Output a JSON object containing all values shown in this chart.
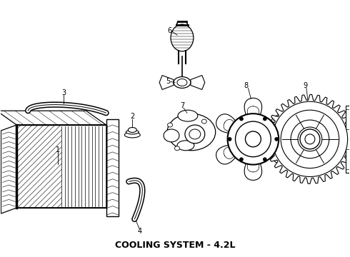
{
  "title": "COOLING SYSTEM - 4.2L",
  "title_fontsize": 9,
  "bg_color": "#ffffff",
  "line_color": "#000000",
  "fig_width": 4.9,
  "fig_height": 3.6,
  "dpi": 100
}
